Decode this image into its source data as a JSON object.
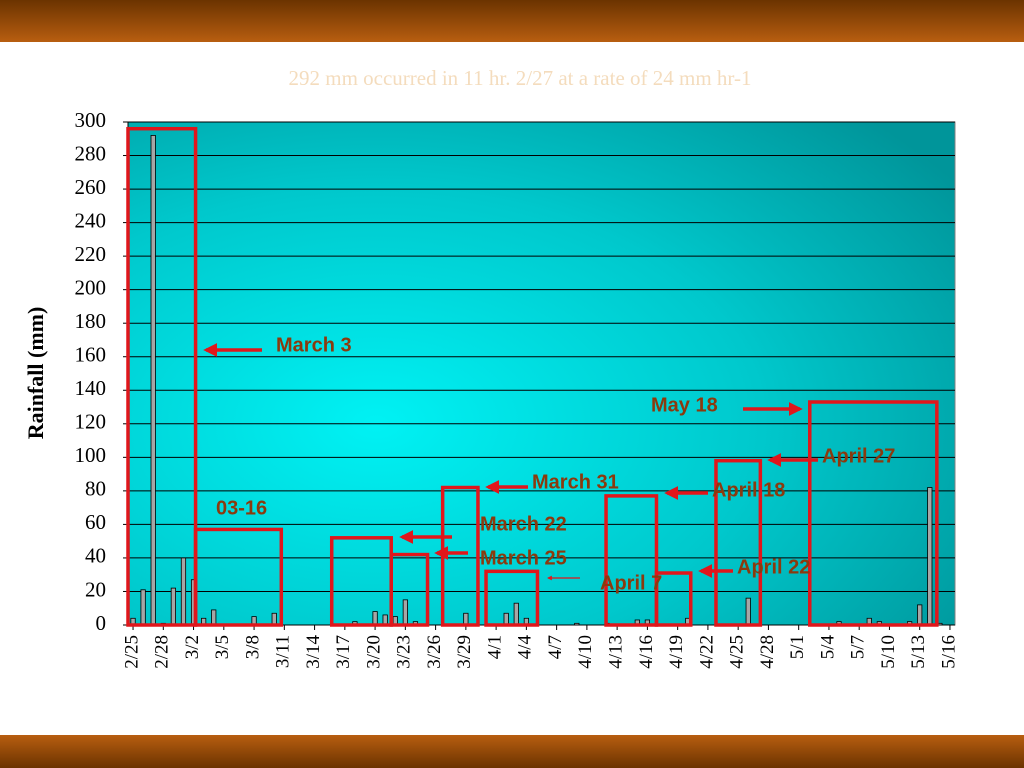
{
  "chart_data": {
    "type": "bar",
    "title": "292 mm occurred in 11 hr. 2/27 at a rate of 24 mm hr-1",
    "y_label": "Rainfall (mm)",
    "categories": [
      "2/25",
      null,
      null,
      "2/28",
      null,
      null,
      "3/2",
      null,
      null,
      "3/5",
      null,
      null,
      "3/8",
      null,
      null,
      "3/11",
      null,
      null,
      "3/14",
      null,
      null,
      "3/17",
      null,
      null,
      "3/20",
      null,
      null,
      "3/23",
      null,
      null,
      "3/26",
      null,
      null,
      "3/29",
      null,
      null,
      "4/1",
      null,
      null,
      "4/4",
      null,
      null,
      "4/7",
      null,
      null,
      "4/10",
      null,
      null,
      "4/13",
      null,
      null,
      "4/16",
      null,
      null,
      "4/19",
      null,
      null,
      "4/22",
      null,
      null,
      "4/25",
      null,
      null,
      "4/28",
      null,
      null,
      "5/1",
      null,
      null,
      "5/4",
      null,
      null,
      "5/7",
      null,
      null,
      "5/10",
      null,
      null,
      "5/13",
      null,
      null,
      "5/16"
    ],
    "values": [
      4,
      21,
      292,
      1,
      22,
      40,
      27,
      4,
      9,
      0,
      0,
      0,
      5,
      0,
      7,
      0,
      0,
      0,
      0,
      0,
      0,
      0,
      2,
      0,
      8,
      6,
      5,
      15,
      2,
      0,
      0,
      0,
      0,
      7,
      0,
      0,
      0,
      7,
      13,
      4,
      0,
      0,
      0,
      0,
      1,
      0,
      0,
      1,
      0,
      0,
      3,
      3,
      0,
      0,
      0,
      4,
      0,
      0,
      0,
      0,
      0,
      16,
      0,
      0,
      0,
      0,
      0,
      0,
      0,
      0,
      2,
      0,
      0,
      4,
      2,
      0,
      0,
      2,
      12,
      82,
      1,
      0
    ],
    "color": "#a6a6a6",
    "ylim": [
      0,
      300
    ],
    "yticks": [
      0,
      20,
      40,
      60,
      80,
      100,
      120,
      140,
      160,
      180,
      200,
      220,
      240,
      260,
      280,
      300
    ],
    "grid": true,
    "annotations": [
      {
        "text": "March 3",
        "x": [
          -0.5,
          6.2
        ],
        "value": 296
      },
      {
        "text": "03-16",
        "x": [
          6.2,
          14.7
        ],
        "value": 57
      },
      {
        "text": "March 22",
        "x": [
          19.7,
          25.6
        ],
        "value": 52
      },
      {
        "text": "March 25",
        "x": [
          25.6,
          29.2
        ],
        "value": 42
      },
      {
        "text": "March 31",
        "x": [
          30.7,
          34.2
        ],
        "value": 82
      },
      {
        "text": "April 7",
        "x": [
          35.0,
          40.1
        ],
        "value": 32
      },
      {
        "text": "April 18",
        "x": [
          46.9,
          51.9
        ],
        "value": 77
      },
      {
        "text": "April 22",
        "x": [
          51.9,
          55.3
        ],
        "value": 31
      },
      {
        "text": "April 27",
        "x": [
          57.8,
          62.2
        ],
        "value": 98
      },
      {
        "text": "May 18",
        "x": [
          67.1,
          79.7
        ],
        "value": 133
      }
    ],
    "annotation_color": "#e0161b"
  }
}
